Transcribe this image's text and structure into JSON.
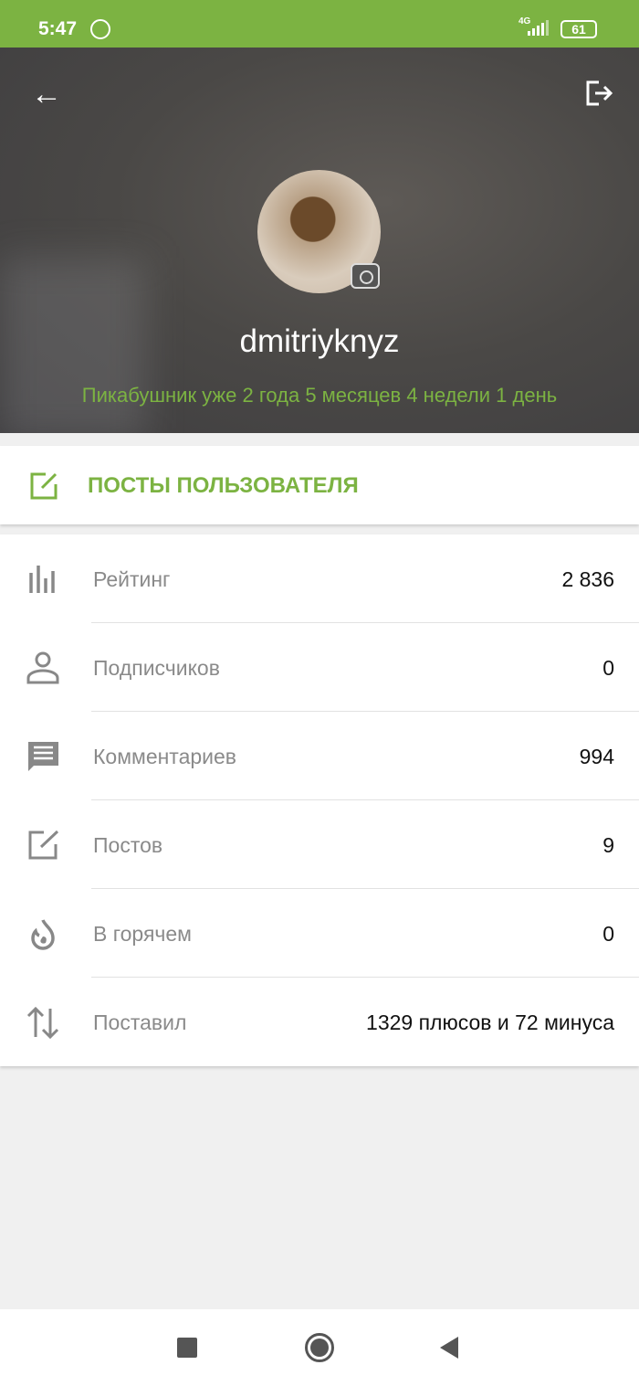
{
  "status_bar": {
    "time": "5:47",
    "network": "4G",
    "battery": "61"
  },
  "profile": {
    "username": "dmitriyknyz",
    "member_since": "Пикабушник уже 2 года 5 месяцев 4 недели 1 день"
  },
  "posts_button": {
    "label": "ПОСТЫ ПОЛЬЗОВАТЕЛЯ"
  },
  "stats": [
    {
      "icon": "bar-chart-icon",
      "label": "Рейтинг",
      "value": "2 836"
    },
    {
      "icon": "person-icon",
      "label": "Подписчиков",
      "value": "0"
    },
    {
      "icon": "comment-icon",
      "label": "Комментариев",
      "value": "994"
    },
    {
      "icon": "edit-icon",
      "label": "Постов",
      "value": "9"
    },
    {
      "icon": "fire-icon",
      "label": "В горячем",
      "value": "0"
    },
    {
      "icon": "sort-arrows-icon",
      "label": "Поставил",
      "value": "1329 плюсов и 72 минуса"
    }
  ],
  "colors": {
    "accent": "#7cb342"
  }
}
